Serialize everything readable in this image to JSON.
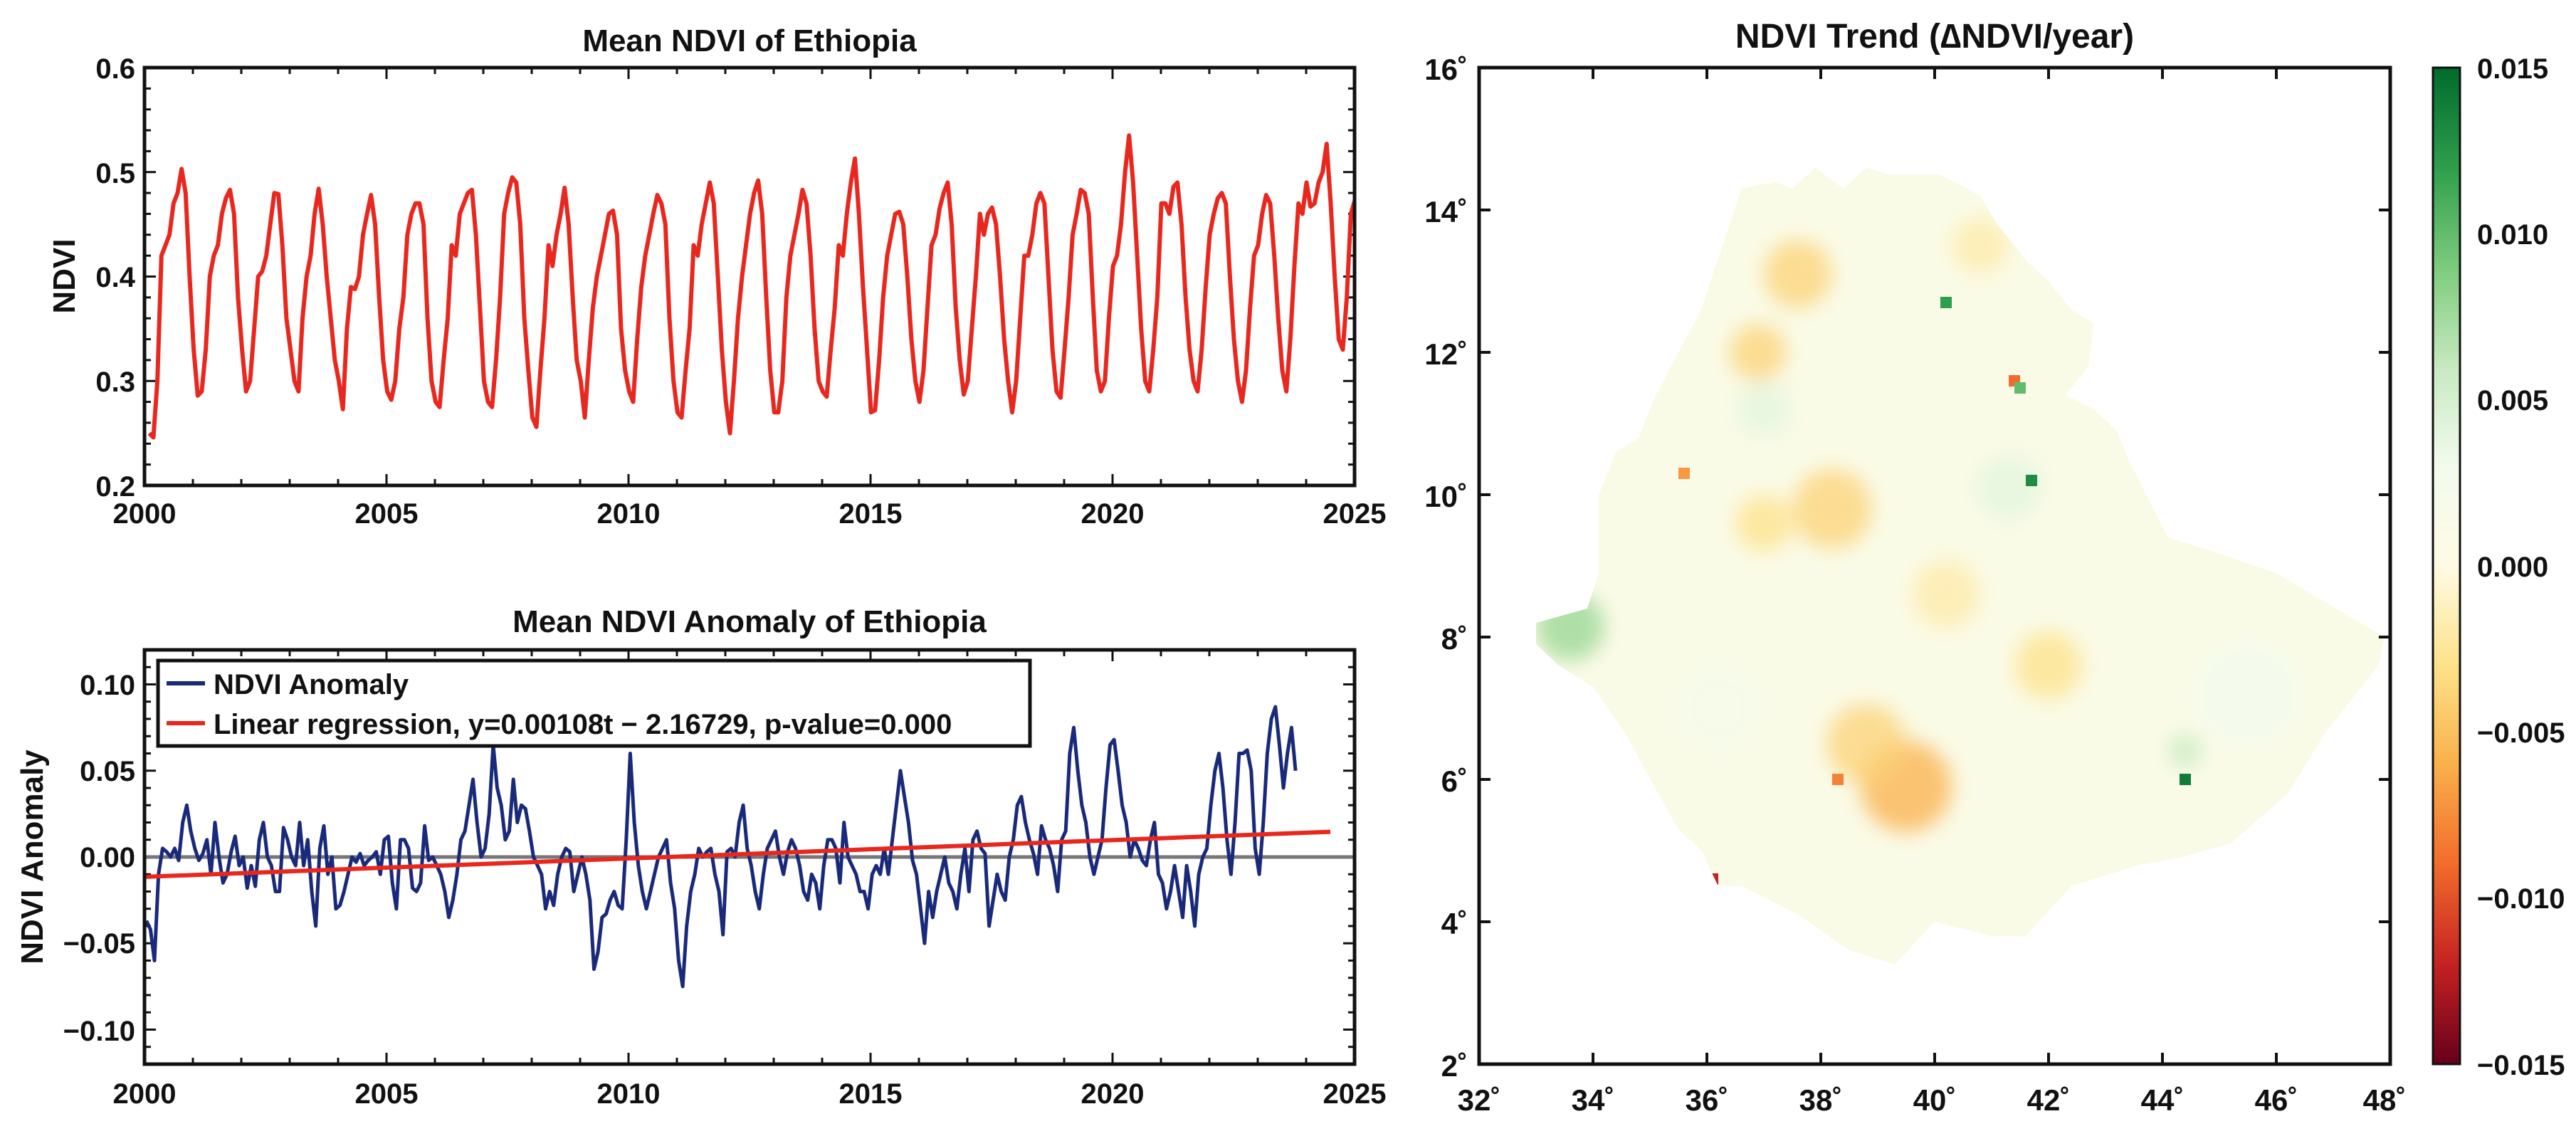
{
  "colors": {
    "ndvi_line": "#e8281e",
    "anomaly_line": "#1a2a7a",
    "regression_line": "#e8281e",
    "zero_line": "#777777",
    "axis": "#111111",
    "cmap": [
      "#67001a",
      "#c42222",
      "#f26b2c",
      "#f9b04a",
      "#fde28a",
      "#fffbe3",
      "#f2fbee",
      "#c6e9bf",
      "#7ccb7c",
      "#2e9e4c",
      "#006b2c"
    ]
  },
  "chart_data": [
    {
      "id": "ndvi",
      "type": "line",
      "title": "Mean NDVI of Ethiopia",
      "xlabel": "",
      "ylabel": "NDVI",
      "xlim": [
        2000,
        2025
      ],
      "ylim": [
        0.2,
        0.6
      ],
      "xticks": [
        "2000",
        "2005",
        "2010",
        "2015",
        "2020",
        "2025"
      ],
      "yticks": [
        "0.2",
        "0.3",
        "0.4",
        "0.5",
        "0.6"
      ],
      "start": 2000.1,
      "step": 0.0833,
      "series": [
        {
          "name": "NDVI",
          "values": [
            0.25,
            0.246,
            0.3,
            0.42,
            0.43,
            0.44,
            0.47,
            0.48,
            0.503,
            0.48,
            0.4,
            0.33,
            0.286,
            0.29,
            0.33,
            0.4,
            0.42,
            0.43,
            0.46,
            0.475,
            0.483,
            0.46,
            0.38,
            0.33,
            0.29,
            0.3,
            0.35,
            0.4,
            0.405,
            0.42,
            0.45,
            0.48,
            0.479,
            0.43,
            0.36,
            0.33,
            0.3,
            0.29,
            0.36,
            0.4,
            0.42,
            0.46,
            0.484,
            0.45,
            0.4,
            0.36,
            0.32,
            0.3,
            0.273,
            0.35,
            0.39,
            0.388,
            0.4,
            0.44,
            0.46,
            0.478,
            0.45,
            0.38,
            0.32,
            0.29,
            0.282,
            0.3,
            0.35,
            0.38,
            0.44,
            0.46,
            0.47,
            0.47,
            0.45,
            0.36,
            0.3,
            0.28,
            0.275,
            0.32,
            0.36,
            0.43,
            0.42,
            0.46,
            0.47,
            0.48,
            0.483,
            0.44,
            0.37,
            0.3,
            0.28,
            0.275,
            0.32,
            0.38,
            0.46,
            0.48,
            0.495,
            0.49,
            0.45,
            0.36,
            0.31,
            0.265,
            0.256,
            0.31,
            0.36,
            0.43,
            0.41,
            0.44,
            0.46,
            0.485,
            0.45,
            0.38,
            0.32,
            0.3,
            0.265,
            0.32,
            0.37,
            0.4,
            0.42,
            0.44,
            0.46,
            0.463,
            0.44,
            0.35,
            0.31,
            0.29,
            0.28,
            0.34,
            0.39,
            0.42,
            0.44,
            0.46,
            0.478,
            0.47,
            0.45,
            0.36,
            0.3,
            0.27,
            0.265,
            0.31,
            0.35,
            0.43,
            0.42,
            0.45,
            0.47,
            0.49,
            0.47,
            0.4,
            0.33,
            0.28,
            0.25,
            0.3,
            0.36,
            0.4,
            0.43,
            0.46,
            0.48,
            0.492,
            0.46,
            0.38,
            0.31,
            0.27,
            0.27,
            0.3,
            0.38,
            0.42,
            0.44,
            0.46,
            0.483,
            0.47,
            0.42,
            0.35,
            0.3,
            0.29,
            0.285,
            0.33,
            0.37,
            0.43,
            0.42,
            0.46,
            0.49,
            0.513,
            0.46,
            0.39,
            0.33,
            0.27,
            0.272,
            0.32,
            0.38,
            0.42,
            0.44,
            0.46,
            0.462,
            0.45,
            0.4,
            0.34,
            0.3,
            0.28,
            0.31,
            0.37,
            0.43,
            0.44,
            0.465,
            0.48,
            0.49,
            0.45,
            0.37,
            0.32,
            0.287,
            0.3,
            0.35,
            0.4,
            0.46,
            0.44,
            0.46,
            0.466,
            0.45,
            0.4,
            0.34,
            0.3,
            0.27,
            0.3,
            0.36,
            0.42,
            0.42,
            0.44,
            0.47,
            0.48,
            0.47,
            0.4,
            0.33,
            0.29,
            0.284,
            0.33,
            0.38,
            0.44,
            0.46,
            0.483,
            0.48,
            0.46,
            0.38,
            0.31,
            0.29,
            0.3,
            0.36,
            0.41,
            0.42,
            0.45,
            0.5,
            0.535,
            0.49,
            0.42,
            0.35,
            0.3,
            0.29,
            0.33,
            0.38,
            0.47,
            0.47,
            0.46,
            0.486,
            0.49,
            0.45,
            0.38,
            0.33,
            0.3,
            0.29,
            0.33,
            0.39,
            0.44,
            0.46,
            0.475,
            0.48,
            0.47,
            0.4,
            0.34,
            0.3,
            0.28,
            0.31,
            0.37,
            0.42,
            0.43,
            0.46,
            0.478,
            0.47,
            0.42,
            0.36,
            0.31,
            0.29,
            0.34,
            0.41,
            0.47,
            0.46,
            0.49,
            0.467,
            0.47,
            0.49,
            0.5,
            0.527,
            0.47,
            0.4,
            0.34,
            0.33,
            0.38,
            0.46,
            0.473,
            0.468
          ]
        }
      ]
    },
    {
      "id": "anomaly",
      "type": "line",
      "title": "Mean NDVI Anomaly of Ethiopia",
      "xlabel": "",
      "ylabel": "NDVI Anomaly",
      "xlim": [
        2000,
        2025
      ],
      "ylim": [
        -0.12,
        0.12
      ],
      "xticks": [
        "2000",
        "2005",
        "2010",
        "2015",
        "2020",
        "2025"
      ],
      "yticks": [
        "−0.10",
        "−0.05",
        "0.00",
        "0.05",
        "0.10"
      ],
      "start": 2000.04,
      "step": 0.0833,
      "series": [
        {
          "name": "NDVI Anomaly",
          "values": [
            -0.037,
            -0.042,
            -0.06,
            -0.01,
            0.005,
            0.003,
            0.0,
            0.005,
            -0.002,
            0.02,
            0.03,
            0.015,
            0.005,
            -0.002,
            0.002,
            0.01,
            -0.01,
            0.02,
            0.0,
            -0.015,
            -0.01,
            0.003,
            0.012,
            -0.005,
            0.0,
            -0.018,
            -0.005,
            -0.017,
            0.01,
            0.02,
            0.0,
            -0.005,
            -0.02,
            -0.02,
            0.017,
            0.01,
            0.0,
            -0.005,
            0.02,
            -0.005,
            0.01,
            -0.02,
            -0.04,
            0.005,
            0.018,
            -0.01,
            0.0,
            -0.03,
            -0.028,
            -0.02,
            -0.01,
            0.0,
            -0.003,
            0.002,
            -0.005,
            -0.002,
            0.0,
            0.003,
            -0.01,
            0.01,
            0.012,
            -0.015,
            -0.03,
            0.01,
            0.01,
            0.005,
            -0.018,
            -0.02,
            -0.015,
            0.018,
            -0.002,
            0.0,
            -0.005,
            -0.01,
            -0.02,
            -0.035,
            -0.025,
            -0.01,
            0.01,
            0.015,
            0.03,
            0.045,
            0.02,
            0.0,
            0.005,
            0.025,
            0.065,
            0.04,
            0.03,
            0.01,
            0.015,
            0.045,
            0.02,
            0.03,
            0.028,
            0.015,
            0.0,
            -0.005,
            -0.01,
            -0.03,
            -0.02,
            -0.028,
            -0.01,
            0.0,
            0.005,
            0.003,
            -0.02,
            -0.01,
            0.0,
            -0.01,
            -0.025,
            -0.065,
            -0.055,
            -0.035,
            -0.033,
            -0.025,
            -0.02,
            -0.028,
            -0.03,
            0.01,
            0.06,
            0.02,
            -0.005,
            -0.02,
            -0.03,
            -0.02,
            -0.01,
            0.0,
            0.005,
            0.01,
            -0.015,
            -0.03,
            -0.06,
            -0.075,
            -0.04,
            -0.02,
            -0.01,
            0.005,
            0.0,
            0.003,
            0.005,
            -0.01,
            -0.02,
            -0.045,
            0.003,
            0.005,
            0.0,
            0.02,
            0.03,
            0.005,
            -0.005,
            -0.02,
            -0.03,
            -0.01,
            0.005,
            0.01,
            0.015,
            0.0,
            -0.01,
            0.003,
            0.01,
            0.005,
            -0.005,
            -0.02,
            -0.025,
            -0.01,
            -0.015,
            -0.03,
            -0.005,
            0.01,
            0.01,
            0.005,
            -0.015,
            0.02,
            0.0,
            -0.005,
            -0.01,
            -0.02,
            -0.02,
            -0.03,
            -0.01,
            -0.005,
            -0.01,
            0.005,
            -0.01,
            0.01,
            0.03,
            0.05,
            0.035,
            0.02,
            -0.002,
            -0.01,
            -0.03,
            -0.05,
            -0.02,
            -0.035,
            -0.02,
            -0.01,
            0.0,
            -0.015,
            -0.02,
            -0.03,
            -0.01,
            0.005,
            -0.02,
            0.01,
            0.015,
            0.005,
            0.002,
            -0.04,
            -0.025,
            -0.01,
            -0.02,
            -0.025,
            0.0,
            0.01,
            0.03,
            0.035,
            0.02,
            0.01,
            0.002,
            -0.01,
            0.018,
            0.01,
            0.005,
            -0.005,
            -0.02,
            0.01,
            0.015,
            0.06,
            0.075,
            0.05,
            0.03,
            0.02,
            0.0,
            -0.01,
            0.0,
            0.01,
            0.04,
            0.065,
            0.068,
            0.05,
            0.03,
            0.02,
            0.0,
            0.01,
            0.005,
            -0.002,
            -0.005,
            0.01,
            0.02,
            -0.01,
            -0.015,
            -0.03,
            -0.02,
            -0.005,
            -0.02,
            -0.035,
            -0.005,
            -0.02,
            -0.04,
            -0.01,
            0.0,
            0.005,
            0.03,
            0.05,
            0.06,
            0.04,
            0.01,
            -0.01,
            0.02,
            0.06,
            0.06,
            0.062,
            0.05,
            0.005,
            -0.01,
            0.02,
            0.06,
            0.08,
            0.087,
            0.065,
            0.04,
            0.06,
            0.075,
            0.05
          ]
        },
        {
          "name": "Linear regression, y=0.00108t − 2.16729, p-value=0.000",
          "x": [
            2000,
            2024.5
          ],
          "values": [
            -0.0115,
            0.0146
          ]
        }
      ]
    },
    {
      "id": "trend",
      "type": "heatmap",
      "title": "NDVI Trend (∆NDVI/year)",
      "xlim": [
        32,
        48
      ],
      "ylim": [
        2,
        16
      ],
      "xticks": [
        "32˚",
        "34˚",
        "36˚",
        "38˚",
        "40˚",
        "42˚",
        "44˚",
        "46˚",
        "48˚"
      ],
      "yticks": [
        "2˚",
        "4˚",
        "6˚",
        "8˚",
        "10˚",
        "12˚",
        "14˚",
        "16˚"
      ],
      "colorbar": {
        "range": [
          -0.015,
          0.015
        ],
        "ticks": [
          "0.015",
          "0.010",
          "0.005",
          "0.000",
          "−0.005",
          "−0.010",
          "−0.015"
        ]
      },
      "outline_lonlat": [
        [
          33.0,
          8.2
        ],
        [
          33.9,
          8.4
        ],
        [
          34.1,
          8.9
        ],
        [
          34.1,
          10.0
        ],
        [
          34.4,
          10.6
        ],
        [
          34.8,
          10.8
        ],
        [
          35.1,
          11.4
        ],
        [
          35.9,
          12.6
        ],
        [
          36.1,
          13.1
        ],
        [
          36.4,
          13.8
        ],
        [
          36.6,
          14.3
        ],
        [
          37.2,
          14.4
        ],
        [
          37.5,
          14.3
        ],
        [
          37.9,
          14.6
        ],
        [
          38.4,
          14.3
        ],
        [
          38.8,
          14.6
        ],
        [
          39.2,
          14.5
        ],
        [
          39.5,
          14.5
        ],
        [
          40.1,
          14.5
        ],
        [
          40.8,
          14.2
        ],
        [
          41.1,
          13.8
        ],
        [
          41.6,
          13.3
        ],
        [
          42.0,
          13.0
        ],
        [
          42.4,
          12.6
        ],
        [
          42.8,
          12.4
        ],
        [
          42.7,
          11.8
        ],
        [
          42.3,
          11.4
        ],
        [
          42.8,
          11.2
        ],
        [
          43.2,
          10.9
        ],
        [
          43.4,
          10.5
        ],
        [
          44.1,
          9.4
        ],
        [
          44.9,
          9.2
        ],
        [
          46.0,
          8.9
        ],
        [
          47.9,
          8.0
        ],
        [
          47.8,
          7.6
        ],
        [
          46.9,
          6.7
        ],
        [
          46.2,
          5.8
        ],
        [
          45.2,
          5.1
        ],
        [
          44.3,
          4.9
        ],
        [
          43.6,
          4.8
        ],
        [
          42.4,
          4.5
        ],
        [
          41.6,
          3.8
        ],
        [
          41.0,
          3.8
        ],
        [
          40.0,
          4.0
        ],
        [
          39.3,
          3.4
        ],
        [
          38.5,
          3.6
        ],
        [
          37.6,
          4.1
        ],
        [
          36.6,
          4.5
        ],
        [
          36.2,
          4.5
        ],
        [
          35.9,
          5.0
        ],
        [
          35.5,
          5.3
        ],
        [
          35.0,
          6.0
        ],
        [
          34.6,
          6.6
        ],
        [
          34.0,
          7.3
        ],
        [
          33.4,
          7.6
        ],
        [
          33.0,
          7.9
        ]
      ],
      "hotspots": [
        {
          "lon": 33.6,
          "lat": 8.15,
          "v": 0.008,
          "r": 0.6
        },
        {
          "lon": 37.0,
          "lat": 11.2,
          "v": 0.004,
          "r": 0.5
        },
        {
          "lon": 37.6,
          "lat": 13.1,
          "v": -0.004,
          "r": 0.6
        },
        {
          "lon": 36.9,
          "lat": 12.0,
          "v": -0.004,
          "r": 0.5
        },
        {
          "lon": 38.2,
          "lat": 9.8,
          "v": -0.004,
          "r": 0.7
        },
        {
          "lon": 37.0,
          "lat": 9.6,
          "v": -0.003,
          "r": 0.5
        },
        {
          "lon": 39.5,
          "lat": 5.9,
          "v": -0.006,
          "r": 0.8
        },
        {
          "lon": 38.8,
          "lat": 6.5,
          "v": -0.004,
          "r": 0.7
        },
        {
          "lon": 40.8,
          "lat": 13.5,
          "v": -0.002,
          "r": 0.5
        },
        {
          "lon": 44.4,
          "lat": 6.4,
          "v": 0.006,
          "r": 0.3
        },
        {
          "lon": 45.5,
          "lat": 7.2,
          "v": 0.003,
          "r": 0.9
        },
        {
          "lon": 41.3,
          "lat": 10.1,
          "v": 0.004,
          "r": 0.6
        },
        {
          "lon": 42.0,
          "lat": 7.6,
          "v": -0.003,
          "r": 0.6
        },
        {
          "lon": 36.2,
          "lat": 7.0,
          "v": 0.002,
          "r": 0.8
        },
        {
          "lon": 40.2,
          "lat": 8.6,
          "v": -0.002,
          "r": 0.6
        }
      ],
      "spots": [
        {
          "lon": 41.4,
          "lat": 11.6,
          "v": -0.009
        },
        {
          "lon": 41.5,
          "lat": 11.5,
          "v": 0.01
        },
        {
          "lon": 36.1,
          "lat": 4.6,
          "v": -0.012
        },
        {
          "lon": 40.2,
          "lat": 12.7,
          "v": 0.012
        },
        {
          "lon": 41.7,
          "lat": 10.2,
          "v": 0.013
        },
        {
          "lon": 44.4,
          "lat": 6.0,
          "v": 0.014
        },
        {
          "lon": 38.3,
          "lat": 6.0,
          "v": -0.008
        },
        {
          "lon": 35.6,
          "lat": 10.3,
          "v": -0.007
        }
      ]
    }
  ]
}
